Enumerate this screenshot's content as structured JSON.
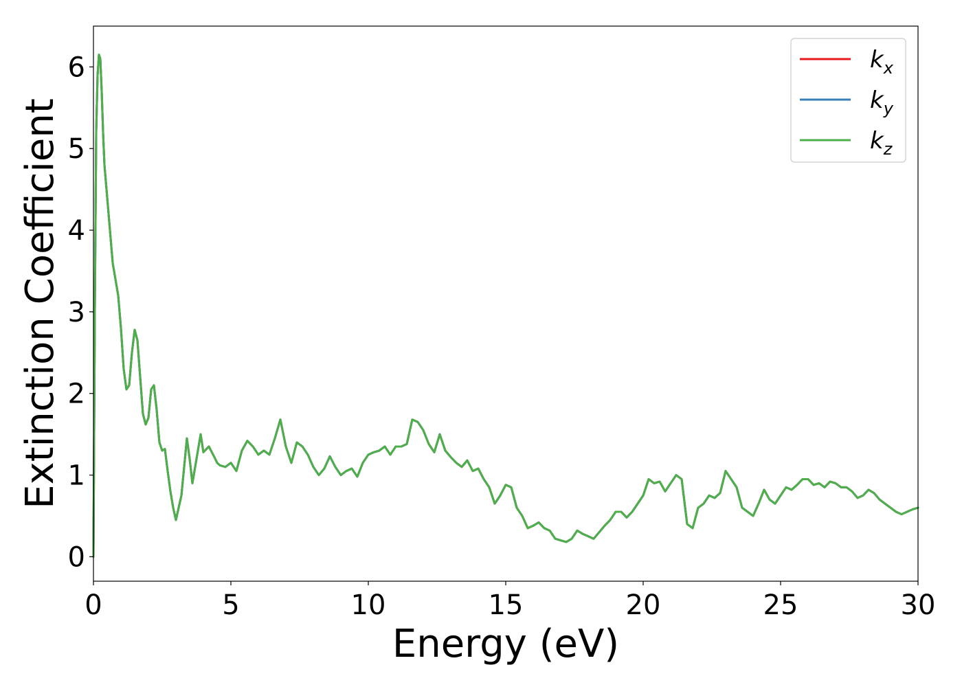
{
  "chart_data": {
    "type": "line",
    "xlabel": "Energy (eV)",
    "ylabel": "Extinction Coefficient",
    "xlim": [
      0,
      30
    ],
    "ylim": [
      -0.3,
      6.5
    ],
    "xticks": [
      0,
      5,
      10,
      15,
      20,
      25,
      30
    ],
    "yticks": [
      0,
      1,
      2,
      3,
      4,
      5,
      6
    ],
    "grid": false,
    "legend_position": "top-right",
    "series": [
      {
        "name": "k",
        "sub": "x",
        "color": "#e41a1c"
      },
      {
        "name": "k",
        "sub": "y",
        "color": "#377eb8"
      },
      {
        "name": "k",
        "sub": "z",
        "color": "#4daf4a"
      }
    ],
    "x": [
      0.0,
      0.05,
      0.1,
      0.15,
      0.2,
      0.25,
      0.3,
      0.35,
      0.4,
      0.5,
      0.6,
      0.7,
      0.8,
      0.9,
      1.0,
      1.1,
      1.2,
      1.3,
      1.4,
      1.5,
      1.6,
      1.7,
      1.8,
      1.9,
      2.0,
      2.1,
      2.2,
      2.3,
      2.4,
      2.5,
      2.6,
      2.7,
      2.8,
      2.9,
      3.0,
      3.2,
      3.4,
      3.5,
      3.6,
      3.8,
      3.9,
      4.0,
      4.2,
      4.4,
      4.5,
      4.6,
      4.8,
      5.0,
      5.2,
      5.4,
      5.6,
      5.8,
      6.0,
      6.2,
      6.4,
      6.6,
      6.8,
      7.0,
      7.2,
      7.4,
      7.6,
      7.8,
      8.0,
      8.2,
      8.4,
      8.6,
      8.8,
      9.0,
      9.2,
      9.4,
      9.6,
      9.8,
      10.0,
      10.2,
      10.4,
      10.6,
      10.8,
      11.0,
      11.2,
      11.4,
      11.6,
      11.8,
      12.0,
      12.2,
      12.4,
      12.6,
      12.8,
      13.0,
      13.2,
      13.4,
      13.6,
      13.8,
      14.0,
      14.2,
      14.4,
      14.6,
      14.8,
      15.0,
      15.2,
      15.4,
      15.6,
      15.8,
      16.0,
      16.2,
      16.4,
      16.6,
      16.8,
      17.0,
      17.2,
      17.4,
      17.6,
      17.8,
      18.0,
      18.2,
      18.4,
      18.6,
      18.8,
      19.0,
      19.2,
      19.4,
      19.6,
      19.8,
      20.0,
      20.2,
      20.4,
      20.6,
      20.8,
      21.0,
      21.2,
      21.4,
      21.6,
      21.8,
      22.0,
      22.2,
      22.4,
      22.6,
      22.8,
      23.0,
      23.2,
      23.4,
      23.6,
      23.8,
      24.0,
      24.2,
      24.4,
      24.6,
      24.8,
      25.0,
      25.2,
      25.4,
      25.6,
      25.8,
      26.0,
      26.2,
      26.4,
      26.6,
      26.8,
      27.0,
      27.2,
      27.4,
      27.6,
      27.8,
      28.0,
      28.2,
      28.4,
      28.6,
      28.8,
      29.0,
      29.2,
      29.4,
      29.6,
      29.8,
      30.0
    ],
    "y": [
      0.0,
      3.0,
      5.2,
      5.9,
      6.15,
      6.1,
      5.7,
      5.2,
      4.8,
      4.4,
      4.0,
      3.6,
      3.4,
      3.2,
      2.8,
      2.3,
      2.05,
      2.1,
      2.5,
      2.78,
      2.65,
      2.2,
      1.75,
      1.62,
      1.7,
      2.05,
      2.1,
      1.8,
      1.4,
      1.3,
      1.32,
      1.05,
      0.8,
      0.6,
      0.45,
      0.75,
      1.45,
      1.2,
      0.9,
      1.3,
      1.5,
      1.28,
      1.35,
      1.22,
      1.15,
      1.12,
      1.1,
      1.15,
      1.05,
      1.3,
      1.42,
      1.35,
      1.25,
      1.3,
      1.25,
      1.45,
      1.68,
      1.35,
      1.15,
      1.4,
      1.35,
      1.25,
      1.1,
      1.0,
      1.08,
      1.23,
      1.1,
      1.0,
      1.05,
      1.08,
      0.98,
      1.15,
      1.25,
      1.28,
      1.3,
      1.35,
      1.25,
      1.35,
      1.35,
      1.38,
      1.68,
      1.65,
      1.55,
      1.38,
      1.28,
      1.5,
      1.3,
      1.22,
      1.15,
      1.1,
      1.18,
      1.05,
      1.08,
      0.95,
      0.85,
      0.65,
      0.75,
      0.88,
      0.85,
      0.6,
      0.5,
      0.35,
      0.38,
      0.42,
      0.35,
      0.32,
      0.22,
      0.2,
      0.18,
      0.22,
      0.32,
      0.28,
      0.25,
      0.22,
      0.3,
      0.38,
      0.45,
      0.55,
      0.55,
      0.48,
      0.55,
      0.65,
      0.75,
      0.95,
      0.9,
      0.92,
      0.8,
      0.9,
      1.0,
      0.95,
      0.4,
      0.35,
      0.6,
      0.65,
      0.75,
      0.72,
      0.78,
      1.05,
      0.95,
      0.85,
      0.6,
      0.55,
      0.5,
      0.65,
      0.82,
      0.7,
      0.65,
      0.75,
      0.85,
      0.82,
      0.88,
      0.95,
      0.95,
      0.88,
      0.9,
      0.85,
      0.92,
      0.9,
      0.85,
      0.85,
      0.8,
      0.72,
      0.75,
      0.82,
      0.78,
      0.7,
      0.65,
      0.6,
      0.55,
      0.52,
      0.55,
      0.58,
      0.6
    ]
  }
}
